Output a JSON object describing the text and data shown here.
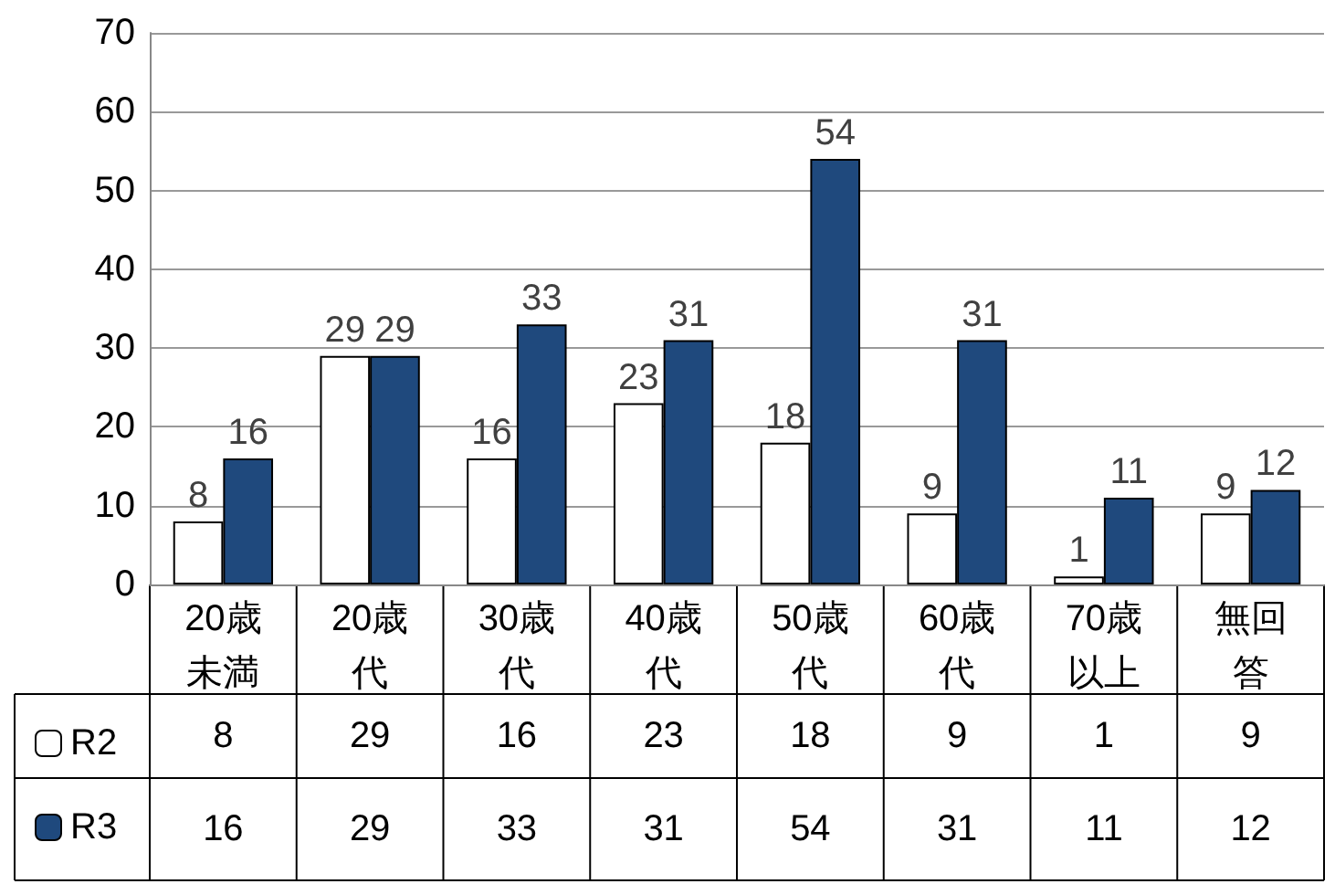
{
  "chart_data": {
    "type": "bar",
    "categories": [
      "20歳未満",
      "20歳代",
      "30歳代",
      "40歳代",
      "50歳代",
      "60歳代",
      "70歳以上",
      "無回答"
    ],
    "series": [
      {
        "name": "R2",
        "color": "#ffffff",
        "values": [
          8,
          29,
          16,
          23,
          18,
          9,
          1,
          9
        ],
        "value_labels": [
          "8",
          "29",
          "16",
          "23",
          "18",
          "9",
          "1",
          "9"
        ]
      },
      {
        "name": "R3",
        "color": "#1f497d",
        "values": [
          16,
          29,
          33,
          31,
          54,
          31,
          11,
          12
        ],
        "value_labels": [
          "16",
          "29",
          "33",
          "31",
          "54",
          "31",
          "11",
          "12"
        ]
      }
    ],
    "annotations": [
      "8",
      "29",
      "16",
      "23",
      "18",
      "9",
      "1",
      "9",
      "16",
      "29",
      "33",
      "31",
      "54",
      "31",
      "11",
      "12"
    ],
    "ylim": [
      0,
      70
    ],
    "yticks": [
      0,
      10,
      20,
      30,
      40,
      50,
      60,
      70
    ],
    "grid": "y",
    "data_labels": true,
    "legend": "bottom left"
  }
}
